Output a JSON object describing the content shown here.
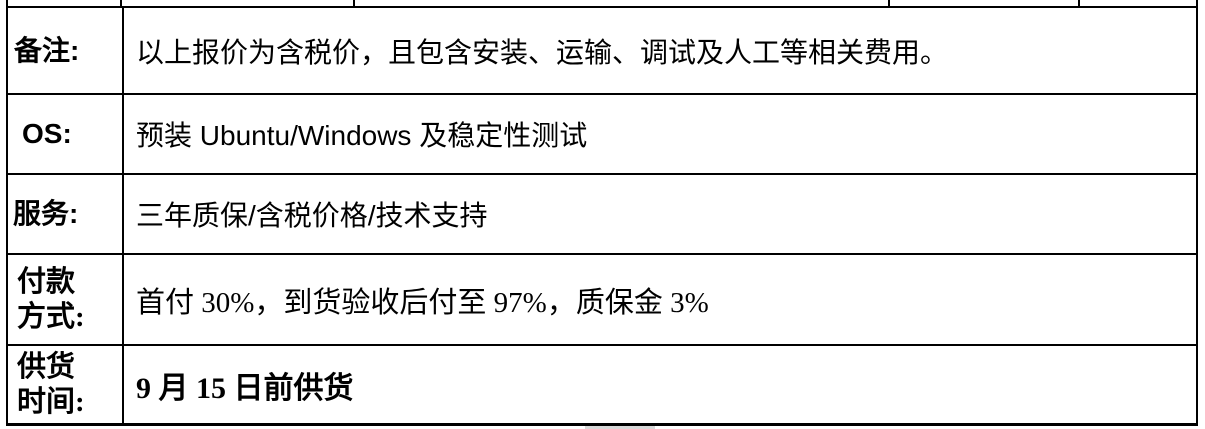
{
  "colors": {
    "border": "#000000",
    "background": "#ffffff",
    "text": "#000000",
    "handle_artifact": "#d8d8d8"
  },
  "table": {
    "rows": [
      {
        "label": "备注:",
        "content": "以上报价为含税价，且包含安装、运输、调试及人工等相关费用。"
      },
      {
        "label": "OS:",
        "content": "预装 Ubuntu/Windows 及稳定性测试"
      },
      {
        "label": "服务:",
        "content": "三年质保/含税价格/技术支持"
      },
      {
        "label": "付款\n方式:",
        "content": "首付 30%，到货验收后付至 97%，质保金 3%"
      },
      {
        "label": "供货\n时间:",
        "content": "9 月 15 日前供货"
      }
    ]
  }
}
